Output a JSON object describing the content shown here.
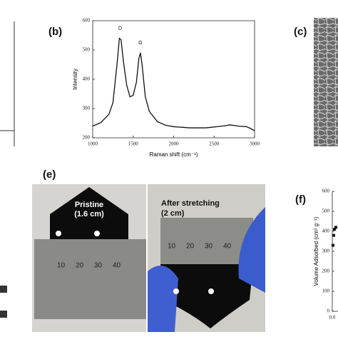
{
  "chart_data": [
    {
      "type": "line",
      "panel": "(b)",
      "xlabel": "Raman shift (cm⁻¹)",
      "ylabel": "Intensity",
      "annotations": [
        {
          "text": "D",
          "x": 1340,
          "y": 540
        },
        {
          "text": "G",
          "x": 1590,
          "y": 490
        }
      ],
      "x": [
        1000,
        1100,
        1200,
        1250,
        1300,
        1330,
        1350,
        1380,
        1420,
        1460,
        1500,
        1540,
        1570,
        1590,
        1610,
        1650,
        1700,
        1800,
        1900,
        2000,
        2200,
        2400,
        2600,
        2700,
        2800,
        2900,
        2950,
        3000
      ],
      "series": [
        {
          "color": "#111111",
          "values": [
            240,
            252,
            280,
            320,
            450,
            540,
            535,
            460,
            380,
            340,
            345,
            390,
            470,
            490,
            450,
            340,
            290,
            255,
            243,
            238,
            234,
            234,
            240,
            244,
            240,
            238,
            232,
            224
          ]
        }
      ],
      "xlim": [
        1000,
        3000
      ],
      "xticks": [
        1000,
        1500,
        2000,
        2500,
        3000
      ],
      "ylim": [
        200,
        600
      ],
      "yticks": [
        200,
        300,
        400,
        500,
        600
      ]
    },
    {
      "type": "scatter",
      "panel": "(f)",
      "ylabel": "Volume Adsorbed (cm³ g⁻¹)",
      "x": [
        0.01,
        0.02,
        0.03,
        0.05
      ],
      "series": [
        {
          "color": "#111111",
          "values": [
            330,
            380,
            410,
            420
          ]
        }
      ],
      "xlim": [
        0,
        0.08
      ],
      "xticks": [
        {
          "value": 0,
          "label": "0.0"
        }
      ],
      "ylim": [
        0,
        600
      ],
      "yticks": [
        0,
        100,
        200,
        300,
        400,
        500,
        600
      ]
    }
  ],
  "panels": {
    "c": "(c)",
    "e": "(e)"
  },
  "photo": {
    "left_caption": "Pristine",
    "left_length": "(1.6 cm)",
    "right_caption": "After stretching",
    "right_length": "(2 cm)",
    "left_ruler": [
      "10",
      "20",
      "30",
      "40"
    ],
    "right_ruler": [
      "10",
      "20",
      "30",
      "40"
    ]
  }
}
